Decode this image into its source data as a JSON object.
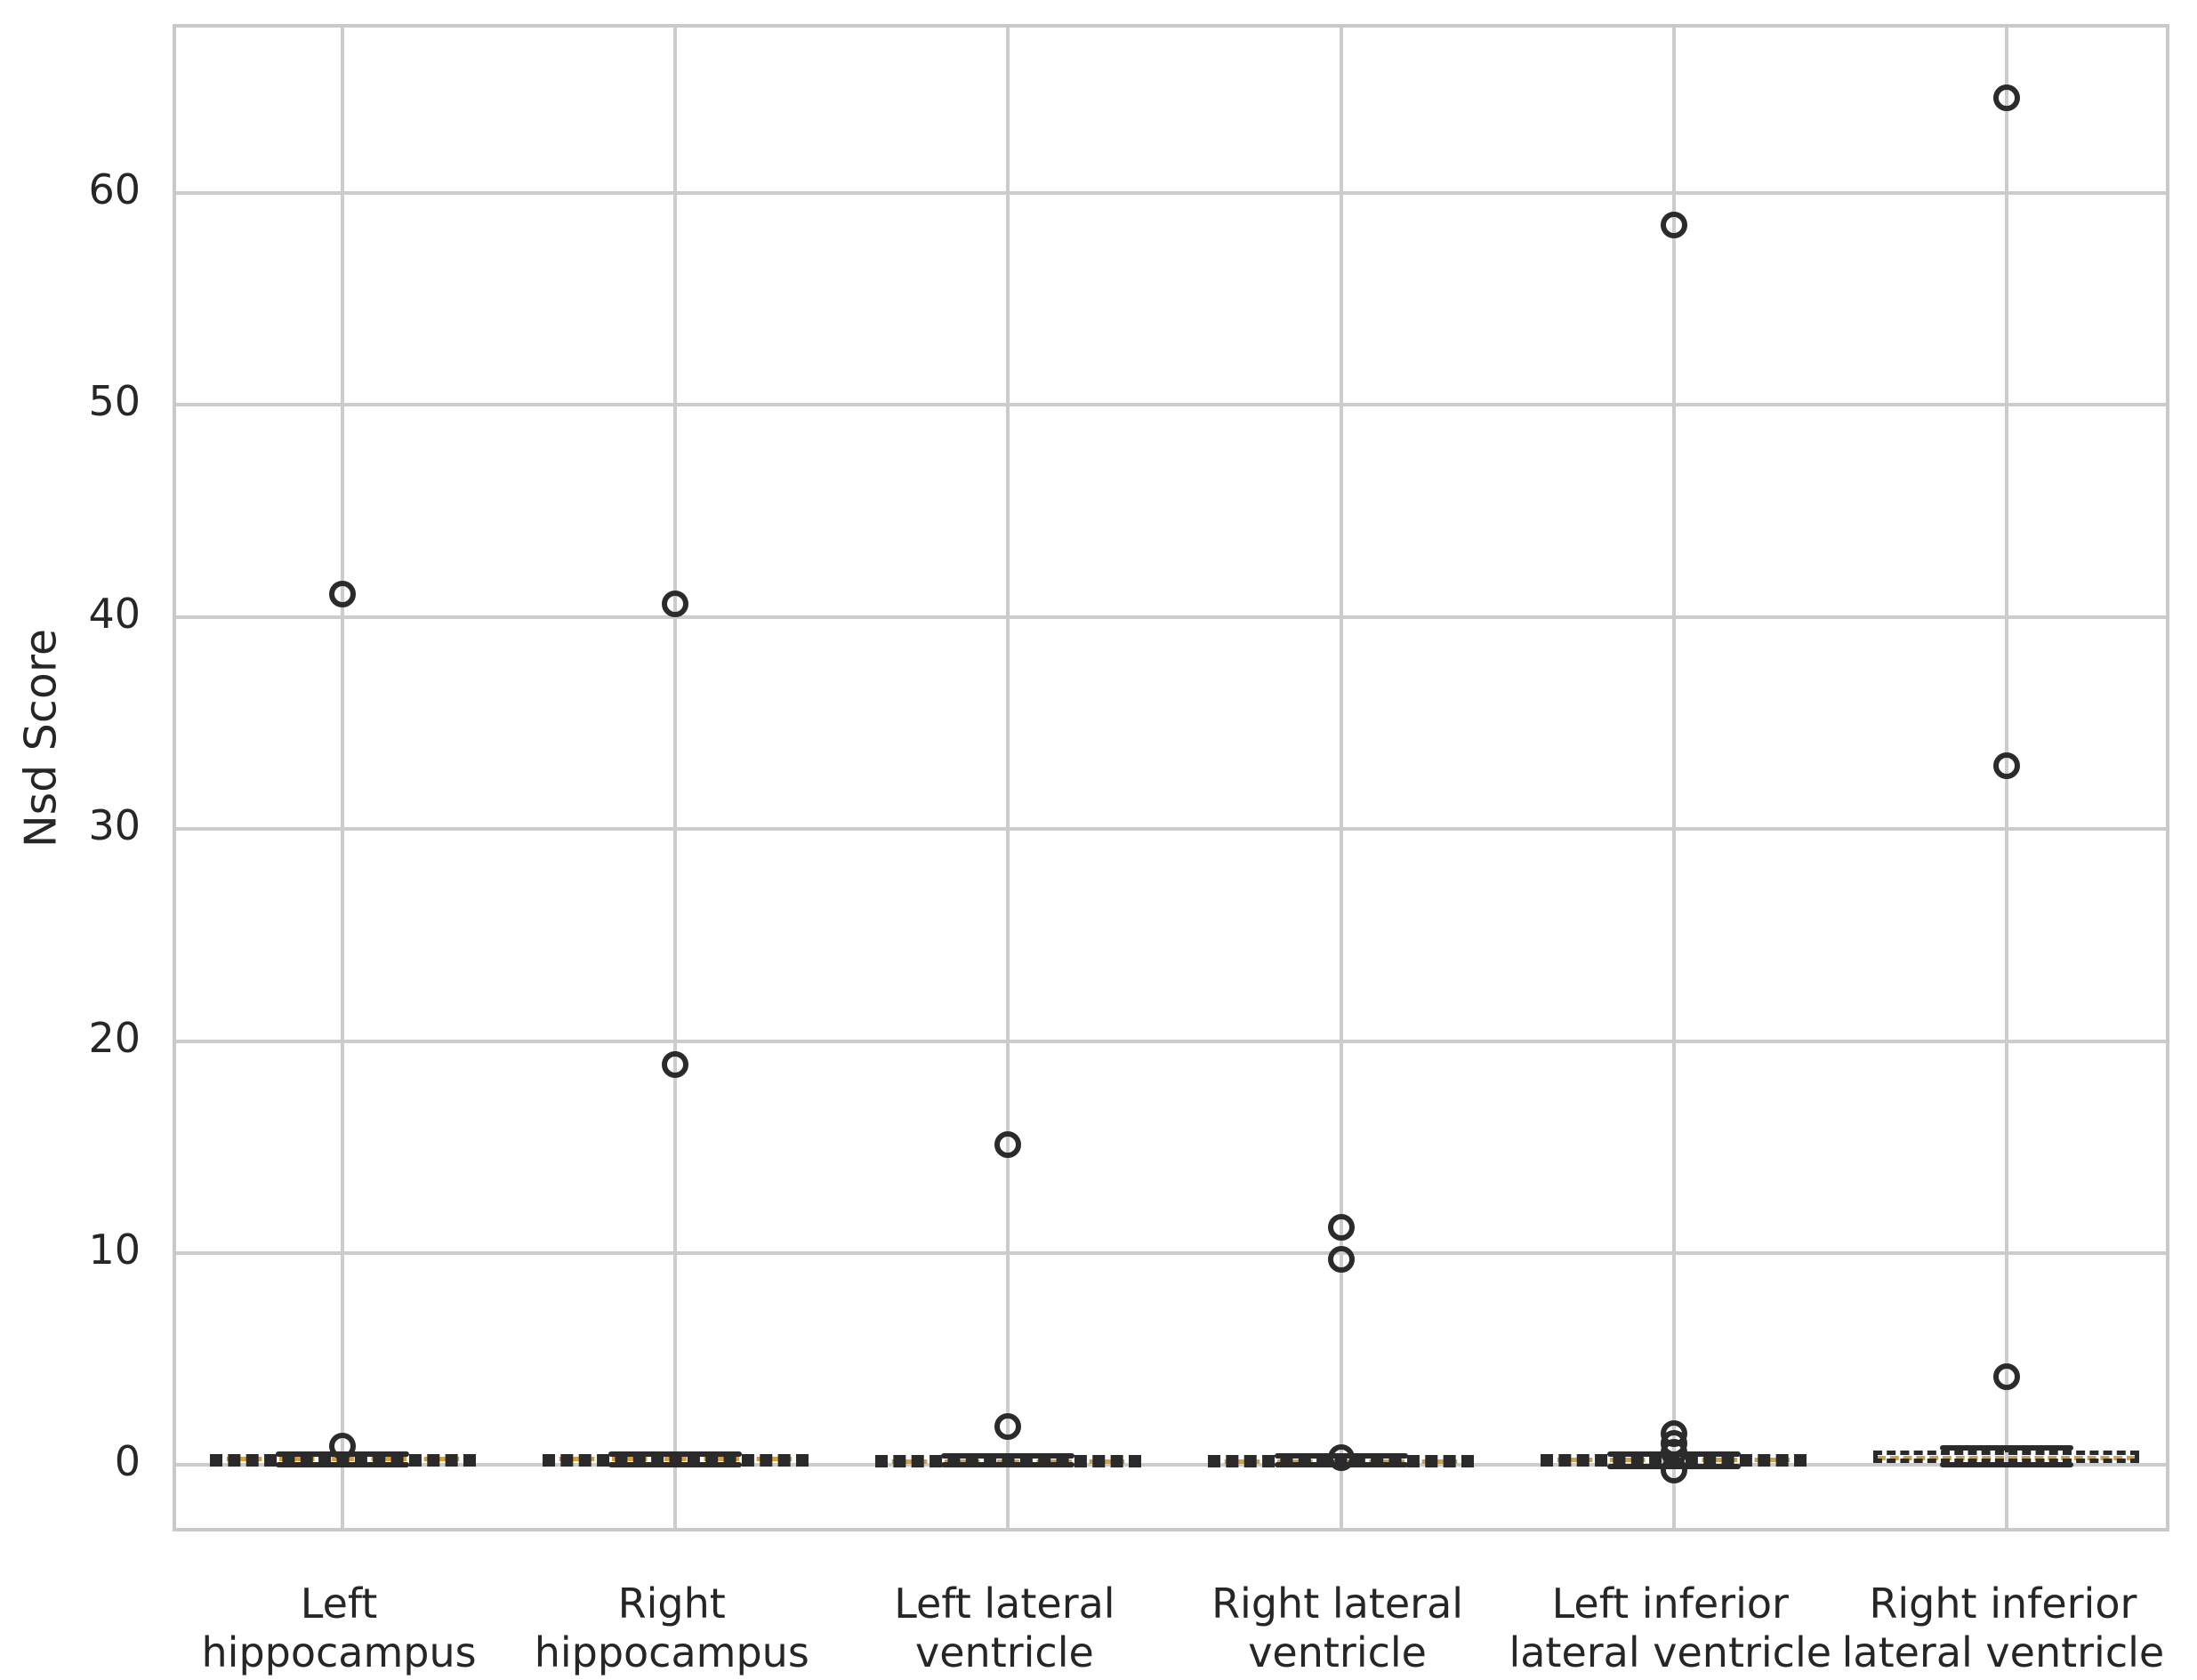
{
  "chart_data": {
    "type": "boxplot",
    "title": "",
    "xlabel": "",
    "ylabel": "Nsd Score",
    "ylim": [
      -3.3,
      67.8
    ],
    "yticks": [
      0,
      10,
      20,
      30,
      40,
      50,
      60
    ],
    "grid": true,
    "legend": "none",
    "colors": {
      "grid": "#cccccc",
      "spine": "#c9c9c9",
      "box_edge": "#2a2a2a",
      "median": "#d8a037",
      "flier_edge": "#2b2b2b",
      "text": "#262626",
      "background": "#ffffff"
    },
    "categories": [
      "Left\nhippocampus",
      "Right\nhippocampus",
      "Left lateral\nventricle",
      "Right lateral\nventricle",
      "Left inferior\nlateral ventricle",
      "Right inferior\nlateral ventricle"
    ],
    "boxes": [
      {
        "q1": 0.05,
        "median": 0.3,
        "q3": 0.45,
        "whisker_low": 0.0,
        "whisker_high": 0.5,
        "outliers": [
          41.1,
          0.9
        ]
      },
      {
        "q1": 0.05,
        "median": 0.3,
        "q3": 0.45,
        "whisker_low": 0.0,
        "whisker_high": 0.5,
        "outliers": [
          40.6,
          18.9
        ]
      },
      {
        "q1": 0.02,
        "median": 0.2,
        "q3": 0.4,
        "whisker_low": 0.0,
        "whisker_high": 0.45,
        "outliers": [
          15.1,
          1.8
        ]
      },
      {
        "q1": 0.02,
        "median": 0.2,
        "q3": 0.4,
        "whisker_low": 0.0,
        "whisker_high": 0.45,
        "outliers": [
          11.2,
          9.7,
          0.33
        ]
      },
      {
        "q1": 0.05,
        "median": 0.25,
        "q3": 0.45,
        "whisker_low": -0.05,
        "whisker_high": 0.5,
        "outliers": [
          58.5,
          1.5,
          1.0,
          0.6,
          -0.25
        ]
      },
      {
        "q1": 0.05,
        "median": 0.35,
        "q3": 0.62,
        "whisker_low": 0.0,
        "whisker_high": 0.8,
        "outliers": [
          64.5,
          33.0,
          4.15
        ]
      }
    ]
  }
}
